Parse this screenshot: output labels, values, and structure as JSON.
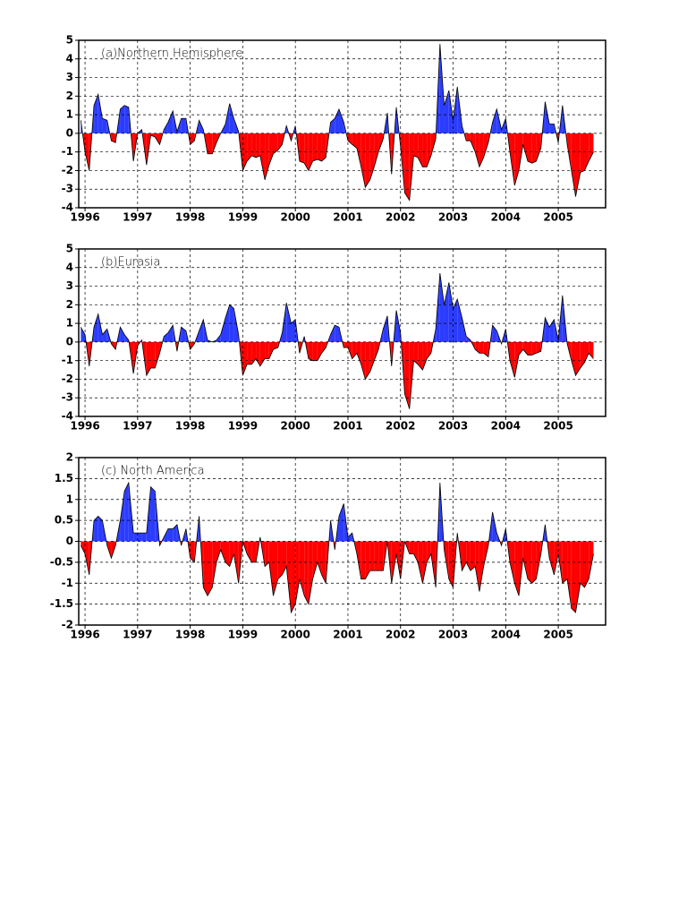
{
  "chart_data": [
    {
      "type": "area",
      "title": "(a)Northern Hemisphere",
      "positive_color": "#2b3cff",
      "negative_color": "#ff0000",
      "xlim": [
        1995.88,
        2005.9
      ],
      "xticks": [
        1996,
        1997,
        1998,
        1999,
        2000,
        2001,
        2002,
        2003,
        2004,
        2005
      ],
      "ylim": [
        -4,
        5
      ],
      "yticks": [
        5,
        4,
        3,
        2,
        1,
        0,
        -1,
        -2,
        -3,
        -4
      ],
      "grid": true,
      "x": [
        1995.92,
        1996,
        1996.08,
        1996.17,
        1996.25,
        1996.33,
        1996.42,
        1996.5,
        1996.58,
        1996.67,
        1996.75,
        1996.83,
        1996.92,
        1997,
        1997.08,
        1997.17,
        1997.25,
        1997.33,
        1997.42,
        1997.5,
        1997.58,
        1997.67,
        1997.75,
        1997.83,
        1997.92,
        1998,
        1998.08,
        1998.17,
        1998.25,
        1998.33,
        1998.42,
        1998.5,
        1998.58,
        1998.67,
        1998.75,
        1998.83,
        1998.92,
        1999,
        1999.08,
        1999.17,
        1999.25,
        1999.33,
        1999.42,
        1999.5,
        1999.58,
        1999.67,
        1999.75,
        1999.83,
        1999.92,
        2000,
        2000.08,
        2000.17,
        2000.25,
        2000.33,
        2000.42,
        2000.5,
        2000.58,
        2000.67,
        2000.75,
        2000.83,
        2000.92,
        2001,
        2001.08,
        2001.17,
        2001.25,
        2001.33,
        2001.42,
        2001.5,
        2001.58,
        2001.67,
        2001.75,
        2001.83,
        2001.92,
        2002,
        2002.08,
        2002.17,
        2002.25,
        2002.33,
        2002.42,
        2002.5,
        2002.58,
        2002.67,
        2002.75,
        2002.83,
        2002.92,
        2003,
        2003.08,
        2003.17,
        2003.25,
        2003.33,
        2003.42,
        2003.5,
        2003.58,
        2003.67,
        2003.75,
        2003.83,
        2003.92,
        2004,
        2004.08,
        2004.17,
        2004.25,
        2004.33,
        2004.42,
        2004.5,
        2004.58,
        2004.67,
        2004.75,
        2004.83,
        2004.92,
        2005,
        2005.08,
        2005.17,
        2005.25,
        2005.33,
        2005.42,
        2005.5,
        2005.58,
        2005.67
      ],
      "values": [
        0.7,
        -1.0,
        -2.0,
        1.5,
        2.1,
        0.8,
        0.7,
        -0.4,
        -0.5,
        1.3,
        1.5,
        1.4,
        -1.5,
        0.0,
        0.2,
        -1.7,
        -0.1,
        -0.2,
        -0.6,
        0.2,
        0.6,
        1.2,
        0.1,
        0.8,
        0.8,
        -0.6,
        -0.4,
        0.7,
        0.2,
        -1.1,
        -1.1,
        -0.5,
        0.0,
        0.5,
        1.6,
        0.8,
        0.1,
        -2.0,
        -1.5,
        -1.2,
        -1.3,
        -1.2,
        -2.5,
        -1.7,
        -1.1,
        -0.9,
        -0.6,
        0.4,
        -0.4,
        0.4,
        -1.5,
        -1.6,
        -2.0,
        -1.5,
        -1.4,
        -1.5,
        -1.3,
        0.6,
        0.8,
        1.3,
        0.6,
        -0.4,
        -0.6,
        -0.8,
        -1.8,
        -2.9,
        -2.5,
        -1.8,
        -1.0,
        -0.3,
        1.1,
        -2.2,
        1.4,
        -0.7,
        -3.2,
        -3.6,
        -1.2,
        -1.3,
        -1.8,
        -1.8,
        -1.2,
        -0.3,
        4.8,
        1.5,
        2.3,
        0.7,
        2.5,
        0.4,
        -0.4,
        -0.4,
        -1.0,
        -1.8,
        -1.3,
        -0.5,
        0.6,
        1.3,
        0.2,
        0.8,
        -1.0,
        -2.8,
        -2.0,
        -0.6,
        -1.5,
        -1.6,
        -1.5,
        -0.8,
        1.7,
        0.5,
        0.5,
        -0.5,
        1.5,
        -0.6,
        -2.0,
        -3.4,
        -2.1,
        -2.0,
        -1.5,
        -1.0
      ]
    },
    {
      "type": "area",
      "title": "(b)Eurasia",
      "positive_color": "#2b3cff",
      "negative_color": "#ff0000",
      "xlim": [
        1995.88,
        2005.9
      ],
      "xticks": [
        1996,
        1997,
        1998,
        1999,
        2000,
        2001,
        2002,
        2003,
        2004,
        2005
      ],
      "ylim": [
        -4,
        5
      ],
      "yticks": [
        5,
        4,
        3,
        2,
        1,
        0,
        -1,
        -2,
        -3,
        -4
      ],
      "grid": true,
      "x": [
        1995.92,
        1996,
        1996.08,
        1996.17,
        1996.25,
        1996.33,
        1996.42,
        1996.5,
        1996.58,
        1996.67,
        1996.75,
        1996.83,
        1996.92,
        1997,
        1997.08,
        1997.17,
        1997.25,
        1997.33,
        1997.42,
        1997.5,
        1997.58,
        1997.67,
        1997.75,
        1997.83,
        1997.92,
        1998,
        1998.08,
        1998.17,
        1998.25,
        1998.33,
        1998.42,
        1998.5,
        1998.58,
        1998.67,
        1998.75,
        1998.83,
        1998.92,
        1999,
        1999.08,
        1999.17,
        1999.25,
        1999.33,
        1999.42,
        1999.5,
        1999.58,
        1999.67,
        1999.75,
        1999.83,
        1999.92,
        2000,
        2000.08,
        2000.17,
        2000.25,
        2000.33,
        2000.42,
        2000.5,
        2000.58,
        2000.67,
        2000.75,
        2000.83,
        2000.92,
        2001,
        2001.08,
        2001.17,
        2001.25,
        2001.33,
        2001.42,
        2001.5,
        2001.58,
        2001.67,
        2001.75,
        2001.83,
        2001.92,
        2002,
        2002.08,
        2002.17,
        2002.25,
        2002.33,
        2002.42,
        2002.5,
        2002.58,
        2002.67,
        2002.75,
        2002.83,
        2002.92,
        2003,
        2003.08,
        2003.17,
        2003.25,
        2003.33,
        2003.42,
        2003.5,
        2003.58,
        2003.67,
        2003.75,
        2003.83,
        2003.92,
        2004,
        2004.08,
        2004.17,
        2004.25,
        2004.33,
        2004.42,
        2004.5,
        2004.58,
        2004.67,
        2004.75,
        2004.83,
        2004.92,
        2005,
        2005.08,
        2005.17,
        2005.25,
        2005.33,
        2005.42,
        2005.5,
        2005.58,
        2005.67
      ],
      "values": [
        0.8,
        0.4,
        -1.3,
        0.8,
        1.5,
        0.4,
        0.7,
        -0.1,
        -0.4,
        0.8,
        0.4,
        0.1,
        -1.7,
        -0.2,
        0.1,
        -1.8,
        -1.4,
        -1.4,
        -0.6,
        0.3,
        0.5,
        0.9,
        -0.5,
        0.8,
        0.6,
        -0.4,
        -0.1,
        0.6,
        1.2,
        0.1,
        0.0,
        0.1,
        0.4,
        1.3,
        2.0,
        1.8,
        0.4,
        -1.8,
        -1.2,
        -1.2,
        -0.9,
        -1.3,
        -0.9,
        -0.9,
        -0.4,
        -0.3,
        0.5,
        2.1,
        1.0,
        1.2,
        -0.6,
        0.3,
        -0.9,
        -1.0,
        -1.0,
        -0.6,
        -0.3,
        0.4,
        0.9,
        0.8,
        -0.3,
        -0.3,
        -0.9,
        -0.6,
        -1.2,
        -2.0,
        -1.6,
        -1.0,
        -0.4,
        0.7,
        1.4,
        -1.3,
        1.7,
        0.5,
        -2.8,
        -3.6,
        -1.0,
        -1.2,
        -1.5,
        -0.9,
        -0.6,
        0.7,
        3.7,
        2.0,
        3.2,
        1.8,
        2.3,
        1.3,
        0.3,
        0.1,
        -0.4,
        -0.6,
        -0.6,
        -0.8,
        0.9,
        0.6,
        -0.1,
        0.7,
        -1.0,
        -1.9,
        -0.7,
        -0.4,
        -0.7,
        -0.7,
        -0.6,
        -0.5,
        1.3,
        0.8,
        1.2,
        0.1,
        2.5,
        -0.1,
        -1.0,
        -1.8,
        -1.4,
        -1.1,
        -0.6,
        -0.9
      ]
    },
    {
      "type": "area",
      "title": "(c) North America",
      "positive_color": "#2b3cff",
      "negative_color": "#ff0000",
      "xlim": [
        1995.88,
        2005.9
      ],
      "xticks": [
        1996,
        1997,
        1998,
        1999,
        2000,
        2001,
        2002,
        2003,
        2004,
        2005
      ],
      "ylim": [
        -2,
        2
      ],
      "yticks": [
        2,
        1.5,
        1,
        0.5,
        0,
        -0.5,
        -1,
        -1.5,
        -2
      ],
      "grid": true,
      "x": [
        1995.92,
        1996,
        1996.08,
        1996.17,
        1996.25,
        1996.33,
        1996.42,
        1996.5,
        1996.58,
        1996.67,
        1996.75,
        1996.83,
        1996.92,
        1997,
        1997.08,
        1997.17,
        1997.25,
        1997.33,
        1997.42,
        1997.5,
        1997.58,
        1997.67,
        1997.75,
        1997.83,
        1997.92,
        1998,
        1998.08,
        1998.17,
        1998.25,
        1998.33,
        1998.42,
        1998.5,
        1998.58,
        1998.67,
        1998.75,
        1998.83,
        1998.92,
        1999,
        1999.08,
        1999.17,
        1999.25,
        1999.33,
        1999.42,
        1999.5,
        1999.58,
        1999.67,
        1999.75,
        1999.83,
        1999.92,
        2000,
        2000.08,
        2000.17,
        2000.25,
        2000.33,
        2000.42,
        2000.5,
        2000.58,
        2000.67,
        2000.75,
        2000.83,
        2000.92,
        2001,
        2001.08,
        2001.17,
        2001.25,
        2001.33,
        2001.42,
        2001.5,
        2001.58,
        2001.67,
        2001.75,
        2001.83,
        2001.92,
        2002,
        2002.08,
        2002.17,
        2002.25,
        2002.33,
        2002.42,
        2002.5,
        2002.58,
        2002.67,
        2002.75,
        2002.83,
        2002.92,
        2003,
        2003.08,
        2003.17,
        2003.25,
        2003.33,
        2003.42,
        2003.5,
        2003.58,
        2003.67,
        2003.75,
        2003.83,
        2003.92,
        2004,
        2004.08,
        2004.17,
        2004.25,
        2004.33,
        2004.42,
        2004.5,
        2004.58,
        2004.67,
        2004.75,
        2004.83,
        2004.92,
        2005,
        2005.08,
        2005.17,
        2005.25,
        2005.33,
        2005.42,
        2005.5,
        2005.58,
        2005.67
      ],
      "values": [
        -0.1,
        -0.3,
        -0.8,
        0.5,
        0.6,
        0.5,
        -0.1,
        -0.4,
        -0.1,
        0.5,
        1.2,
        1.4,
        0.2,
        0.2,
        0.2,
        0.2,
        1.3,
        1.2,
        -0.1,
        0.1,
        0.3,
        0.3,
        0.4,
        -0.1,
        0.3,
        -0.4,
        -0.5,
        0.6,
        -1.1,
        -1.3,
        -1.1,
        -0.5,
        -0.2,
        -0.5,
        -0.6,
        -0.3,
        -1.0,
        0.0,
        -0.3,
        -0.5,
        -0.5,
        0.1,
        -0.6,
        -0.5,
        -1.3,
        -0.9,
        -0.8,
        -0.6,
        -1.7,
        -1.5,
        -0.9,
        -1.3,
        -1.5,
        -0.9,
        -0.5,
        -0.8,
        -1.0,
        0.5,
        -0.2,
        0.6,
        0.9,
        0.1,
        0.2,
        -0.3,
        -0.9,
        -0.9,
        -0.7,
        -0.7,
        -0.7,
        -0.7,
        0.0,
        -1.0,
        -0.3,
        -0.9,
        0.0,
        -0.3,
        -0.3,
        -0.5,
        -1.0,
        -0.5,
        -0.3,
        -1.1,
        1.4,
        -0.2,
        -0.9,
        -1.1,
        0.2,
        -0.7,
        -0.5,
        -0.7,
        -0.6,
        -1.2,
        -0.6,
        -0.1,
        0.7,
        0.2,
        -0.1,
        0.3,
        -0.5,
        -1.0,
        -1.3,
        -0.4,
        -0.9,
        -1.0,
        -0.9,
        -0.3,
        0.4,
        -0.4,
        -0.8,
        -0.3,
        -1.0,
        -0.9,
        -1.6,
        -1.7,
        -1.0,
        -1.1,
        -0.9,
        -0.3
      ]
    }
  ]
}
